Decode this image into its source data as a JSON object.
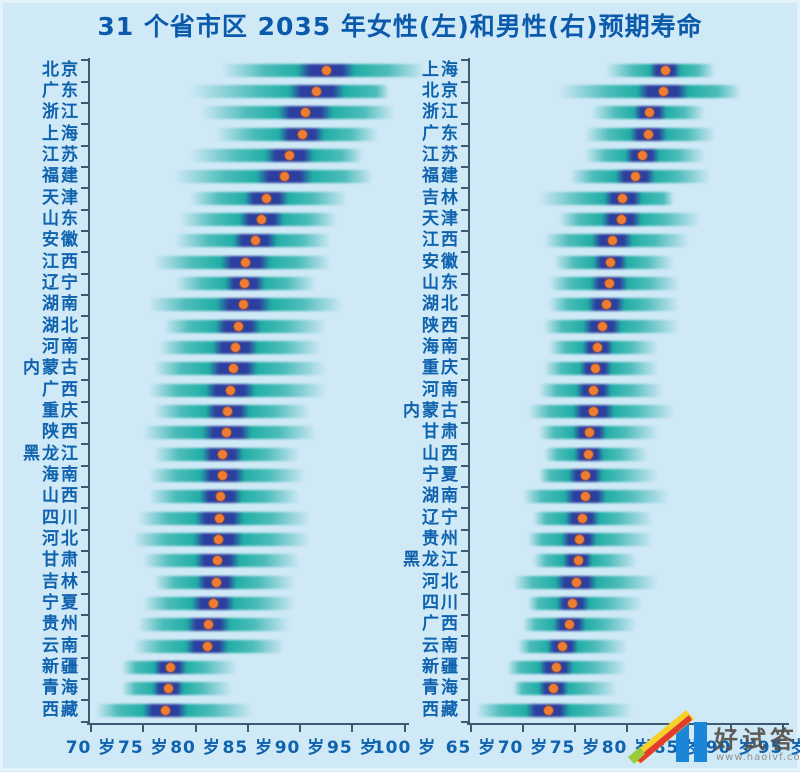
{
  "title": "31 个省市区 2035 年女性(左)和男性(右)预期寿命",
  "colors": {
    "background": "#cfe9f6",
    "title_blue": "#0b5aab",
    "label_blue": "#0f62ae",
    "bar_teal": "#20ada5",
    "bar_navy": "#2c3e9e",
    "median_dot_orange": "#ee7c33",
    "axis": "#3c5a70",
    "watermark_bar_blue": "#1b86d8"
  },
  "watermark": {
    "brand": "好试答",
    "url": "www.haoivf.com"
  },
  "chart_data": {
    "type": "bar",
    "variant": "horizontal-density-strips-with-median-dot",
    "title": "31 个省市区 2035 年女性(左)和男性(右)预期寿命",
    "unit": "岁",
    "legend": "none",
    "grid": "off",
    "panels": [
      {
        "name": "female-left",
        "x_ticks": [
          70,
          75,
          80,
          85,
          90,
          95,
          100
        ],
        "x_tick_labels": [
          "70 岁",
          "75 岁",
          "80 岁",
          "85 岁",
          "90 岁",
          "95 岁",
          "100 岁"
        ],
        "xlim": [
          68.5,
          103
        ],
        "rows": [
          {
            "province": "北京",
            "median": 92.5,
            "lo": 82.5,
            "hi": 102.0
          },
          {
            "province": "广东",
            "median": 91.6,
            "lo": 79.5,
            "hi": 98.5
          },
          {
            "province": "浙江",
            "median": 90.5,
            "lo": 80.5,
            "hi": 99.0
          },
          {
            "province": "上海",
            "median": 90.2,
            "lo": 82.0,
            "hi": 97.5
          },
          {
            "province": "江苏",
            "median": 89.0,
            "lo": 79.5,
            "hi": 96.0
          },
          {
            "province": "福建",
            "median": 88.5,
            "lo": 78.0,
            "hi": 97.0
          },
          {
            "province": "天津",
            "median": 86.8,
            "lo": 79.5,
            "hi": 94.5
          },
          {
            "province": "山东",
            "median": 86.3,
            "lo": 78.5,
            "hi": 93.5
          },
          {
            "province": "安徽",
            "median": 85.7,
            "lo": 78.0,
            "hi": 93.0
          },
          {
            "province": "江西",
            "median": 84.8,
            "lo": 76.0,
            "hi": 93.0
          },
          {
            "province": "辽宁",
            "median": 84.7,
            "lo": 78.0,
            "hi": 91.5
          },
          {
            "province": "湖南",
            "median": 84.6,
            "lo": 75.5,
            "hi": 94.0
          },
          {
            "province": "湖北",
            "median": 84.1,
            "lo": 77.0,
            "hi": 92.5
          },
          {
            "province": "河南",
            "median": 83.8,
            "lo": 76.5,
            "hi": 92.0
          },
          {
            "province": "内蒙古",
            "median": 83.6,
            "lo": 76.0,
            "hi": 92.5
          },
          {
            "province": "广西",
            "median": 83.3,
            "lo": 75.5,
            "hi": 92.5
          },
          {
            "province": "重庆",
            "median": 83.1,
            "lo": 76.0,
            "hi": 91.0
          },
          {
            "province": "陕西",
            "median": 83.0,
            "lo": 75.0,
            "hi": 91.5
          },
          {
            "province": "黑龙江",
            "median": 82.6,
            "lo": 76.0,
            "hi": 90.0
          },
          {
            "province": "海南",
            "median": 82.6,
            "lo": 75.5,
            "hi": 90.5
          },
          {
            "province": "山西",
            "median": 82.4,
            "lo": 75.5,
            "hi": 90.0
          },
          {
            "province": "四川",
            "median": 82.3,
            "lo": 74.5,
            "hi": 91.0
          },
          {
            "province": "河北",
            "median": 82.2,
            "lo": 74.0,
            "hi": 91.0
          },
          {
            "province": "甘肃",
            "median": 82.1,
            "lo": 75.0,
            "hi": 90.0
          },
          {
            "province": "吉林",
            "median": 82.0,
            "lo": 76.0,
            "hi": 89.5
          },
          {
            "province": "宁夏",
            "median": 81.7,
            "lo": 75.0,
            "hi": 89.5
          },
          {
            "province": "贵州",
            "median": 81.2,
            "lo": 74.5,
            "hi": 89.0
          },
          {
            "province": "云南",
            "median": 81.1,
            "lo": 74.0,
            "hi": 88.5
          },
          {
            "province": "新疆",
            "median": 77.6,
            "lo": 73.0,
            "hi": 84.0
          },
          {
            "province": "青海",
            "median": 77.4,
            "lo": 73.0,
            "hi": 83.5
          },
          {
            "province": "西藏",
            "median": 77.1,
            "lo": 70.5,
            "hi": 85.5
          }
        ]
      },
      {
        "name": "male-right",
        "x_ticks": [
          65,
          70,
          75,
          80,
          85,
          90,
          95
        ],
        "x_tick_labels": [
          "65 岁",
          "70 岁",
          "75 岁",
          "80 岁",
          "85 岁",
          "90 岁",
          "95 岁"
        ],
        "xlim": [
          63.5,
          96
        ],
        "rows": [
          {
            "province": "上海",
            "median": 83.7,
            "lo": 78.0,
            "hi": 88.5
          },
          {
            "province": "北京",
            "median": 83.5,
            "lo": 73.5,
            "hi": 91.0
          },
          {
            "province": "浙江",
            "median": 82.2,
            "lo": 76.5,
            "hi": 87.5
          },
          {
            "province": "广东",
            "median": 82.1,
            "lo": 76.0,
            "hi": 88.5
          },
          {
            "province": "江苏",
            "median": 81.5,
            "lo": 76.0,
            "hi": 87.5
          },
          {
            "province": "福建",
            "median": 80.8,
            "lo": 74.5,
            "hi": 88.0
          },
          {
            "province": "吉林",
            "median": 79.6,
            "lo": 71.5,
            "hi": 84.5
          },
          {
            "province": "天津",
            "median": 79.5,
            "lo": 73.5,
            "hi": 87.0
          },
          {
            "province": "江西",
            "median": 78.6,
            "lo": 72.0,
            "hi": 86.0
          },
          {
            "province": "安徽",
            "median": 78.4,
            "lo": 73.0,
            "hi": 84.5
          },
          {
            "province": "山东",
            "median": 78.3,
            "lo": 72.5,
            "hi": 85.0
          },
          {
            "province": "湖北",
            "median": 78.0,
            "lo": 72.5,
            "hi": 85.0
          },
          {
            "province": "陕西",
            "median": 77.6,
            "lo": 72.0,
            "hi": 85.0
          },
          {
            "province": "海南",
            "median": 77.2,
            "lo": 72.5,
            "hi": 83.0
          },
          {
            "province": "重庆",
            "median": 77.0,
            "lo": 72.0,
            "hi": 83.0
          },
          {
            "province": "河南",
            "median": 76.8,
            "lo": 71.5,
            "hi": 83.5
          },
          {
            "province": "内蒙古",
            "median": 76.8,
            "lo": 70.5,
            "hi": 84.5
          },
          {
            "province": "甘肃",
            "median": 76.4,
            "lo": 71.5,
            "hi": 83.0
          },
          {
            "province": "山西",
            "median": 76.3,
            "lo": 72.0,
            "hi": 82.0
          },
          {
            "province": "宁夏",
            "median": 76.0,
            "lo": 71.5,
            "hi": 83.0
          },
          {
            "province": "湖南",
            "median": 76.0,
            "lo": 70.0,
            "hi": 84.0
          },
          {
            "province": "辽宁",
            "median": 75.7,
            "lo": 71.0,
            "hi": 82.5
          },
          {
            "province": "贵州",
            "median": 75.4,
            "lo": 70.5,
            "hi": 82.5
          },
          {
            "province": "黑龙江",
            "median": 75.3,
            "lo": 71.0,
            "hi": 81.0
          },
          {
            "province": "河北",
            "median": 75.1,
            "lo": 69.0,
            "hi": 83.0
          },
          {
            "province": "四川",
            "median": 74.8,
            "lo": 70.5,
            "hi": 81.5
          },
          {
            "province": "广西",
            "median": 74.5,
            "lo": 70.0,
            "hi": 81.0
          },
          {
            "province": "云南",
            "median": 73.8,
            "lo": 69.5,
            "hi": 80.0
          },
          {
            "province": "新疆",
            "median": 73.2,
            "lo": 68.5,
            "hi": 80.0
          },
          {
            "province": "青海",
            "median": 72.9,
            "lo": 69.0,
            "hi": 79.0
          },
          {
            "province": "西藏",
            "median": 72.4,
            "lo": 65.5,
            "hi": 80.5
          }
        ]
      }
    ]
  }
}
